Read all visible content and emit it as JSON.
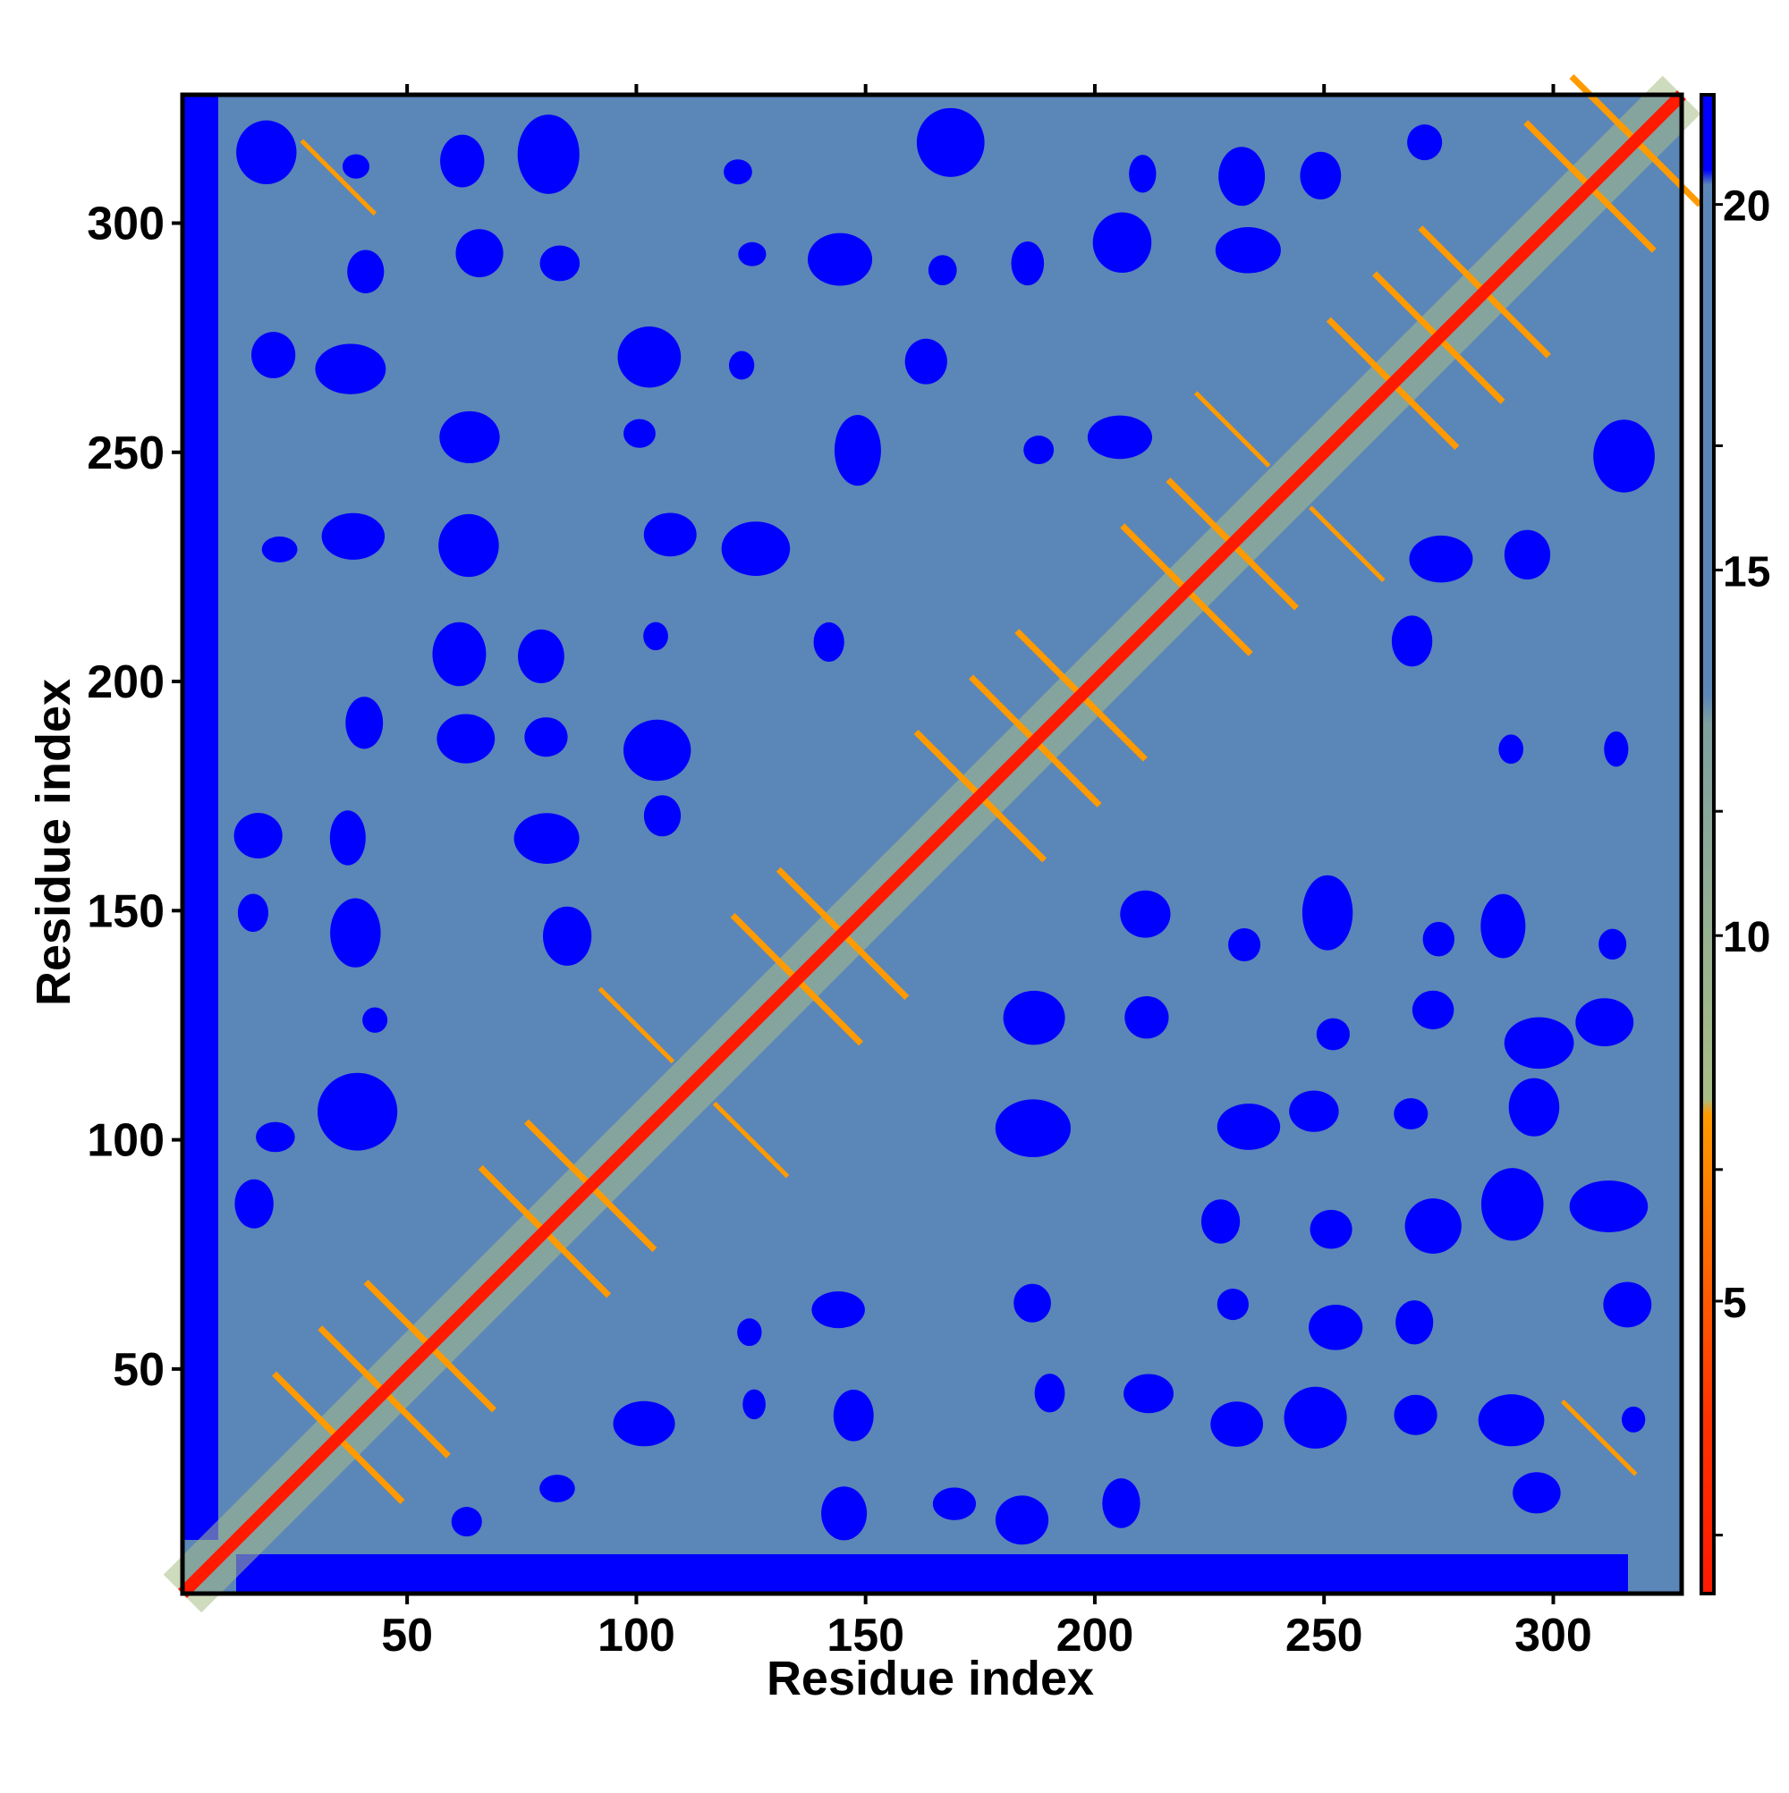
{
  "chart_data": {
    "type": "heatmap",
    "title": "",
    "xlabel": "Residue index",
    "ylabel": "Residue index",
    "xlim": [
      1,
      328
    ],
    "ylim": [
      1,
      328
    ],
    "x_ticks": [
      50,
      100,
      150,
      200,
      250,
      300
    ],
    "y_ticks": [
      50,
      100,
      150,
      200,
      250,
      300
    ],
    "x_minor_ticks": [
      50,
      100,
      150,
      200,
      250,
      300
    ],
    "colorbar": {
      "range": [
        1,
        21.5
      ],
      "ticks": [
        5,
        10,
        15,
        20
      ],
      "minor_ticks": [
        5,
        10,
        15,
        20,
        1.8,
        6.8,
        11.7,
        16.7
      ],
      "colors": {
        "contact": "#ff1a00",
        "near": "#ff9a00",
        "mid": "#a8bd86",
        "far": "#5b86b8",
        "very_far": "#0000ff"
      },
      "thresholds": [
        3.5,
        8.2,
        13.5,
        20.3
      ]
    },
    "grid": false,
    "description_of_matrix": "",
    "beta_hairpins": [
      [
        35,
        35
      ],
      [
        45,
        45
      ],
      [
        55,
        55
      ],
      [
        80,
        80
      ],
      [
        90,
        90
      ],
      [
        135,
        135
      ],
      [
        145,
        145
      ],
      [
        175,
        175
      ],
      [
        187,
        187
      ],
      [
        197,
        197
      ],
      [
        220,
        220
      ],
      [
        230,
        230
      ],
      [
        265,
        265
      ],
      [
        275,
        275
      ],
      [
        285,
        285
      ],
      [
        308,
        308
      ],
      [
        318,
        318
      ]
    ],
    "offdiag_contacts": [
      [
        35,
        310
      ],
      [
        310,
        35
      ],
      [
        100,
        125
      ],
      [
        125,
        100
      ],
      [
        230,
        255
      ],
      [
        255,
        230
      ]
    ]
  }
}
